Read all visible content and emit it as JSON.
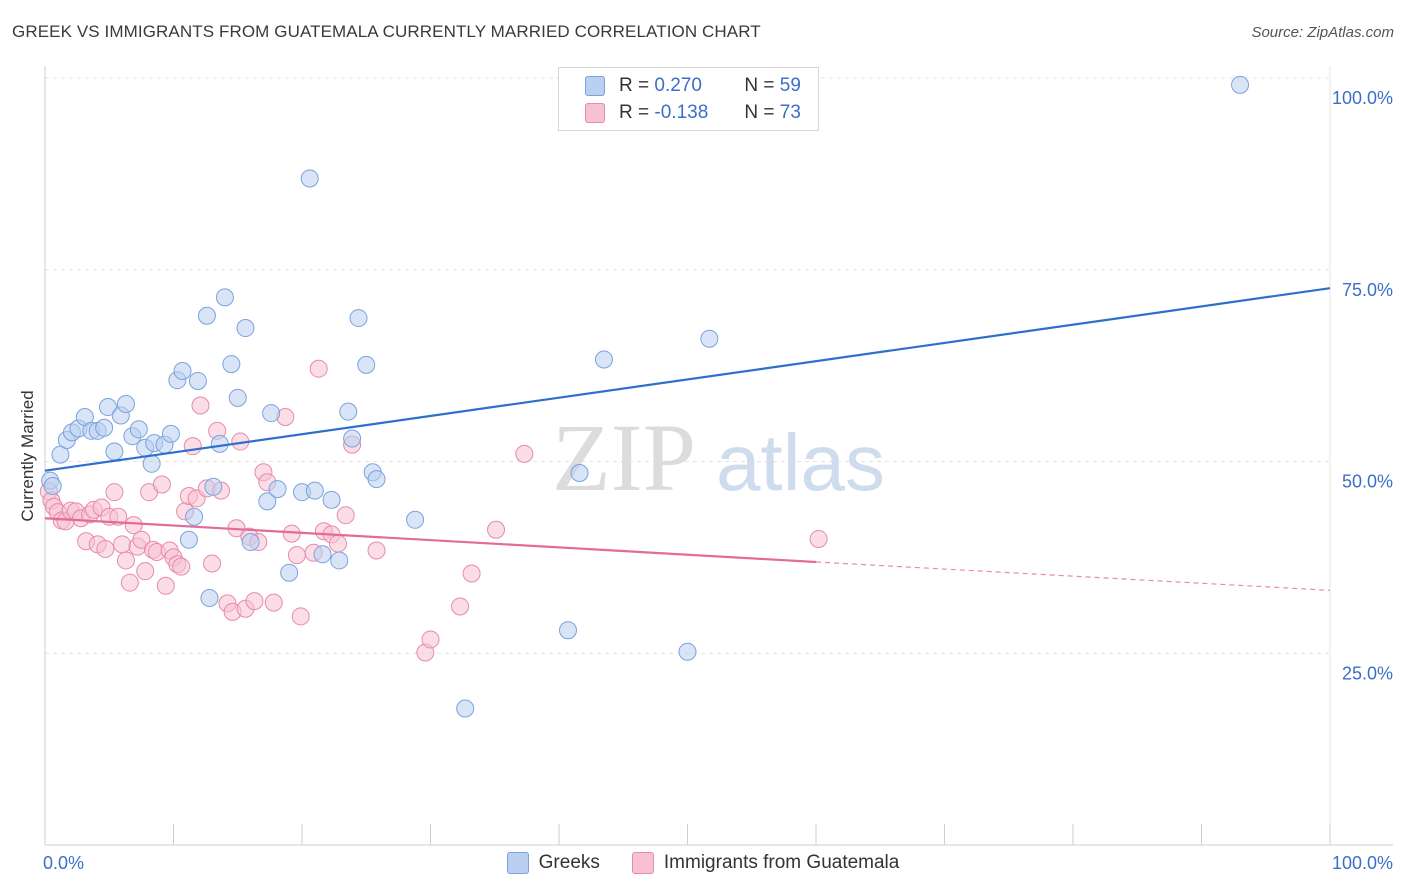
{
  "header": {
    "title": "GREEK VS IMMIGRANTS FROM GUATEMALA CURRENTLY MARRIED CORRELATION CHART",
    "source": "Source: ZipAtlas.com"
  },
  "watermark": {
    "part1": "ZIP",
    "part2": "atlas"
  },
  "legend": {
    "rows": [
      {
        "r_label": "R =",
        "r_value": "0.270",
        "n_label": "N =",
        "n_value": "59"
      },
      {
        "r_label": "R =",
        "r_value": "-0.138",
        "n_label": "N =",
        "n_value": "73"
      }
    ]
  },
  "bottom_legend": {
    "items": [
      "Greeks",
      "Immigrants from Guatemala"
    ]
  },
  "colors": {
    "greeks_fill": "#b9d0f0",
    "greeks_stroke": "#7aa3dc",
    "greeks_line": "#2e6fce",
    "guatemala_fill": "#f7c1d2",
    "guatemala_stroke": "#e88aab",
    "guatemala_line": "#e26b98",
    "tick_label": "#3b6fc7",
    "grid": "#e3e3e3"
  },
  "chart_data": {
    "type": "scatter",
    "title": "GREEK VS IMMIGRANTS FROM GUATEMALA CURRENTLY MARRIED CORRELATION CHART",
    "xlabel": "",
    "ylabel": "Currently Married",
    "xlim": [
      0,
      100
    ],
    "ylim": [
      0,
      100
    ],
    "x_ticks": [
      "0.0%",
      "100.0%"
    ],
    "y_ticks": [
      {
        "value": 25,
        "label": "25.0%"
      },
      {
        "value": 50,
        "label": "50.0%"
      },
      {
        "value": 75,
        "label": "75.0%"
      },
      {
        "value": 100,
        "label": "100.0%"
      }
    ],
    "grid": true,
    "legend_position": "top-center",
    "series": [
      {
        "name": "Greeks",
        "r": 0.27,
        "n": 59,
        "trend": {
          "x": [
            0,
            100
          ],
          "y": [
            48.8,
            72.6
          ]
        },
        "points": [
          [
            0.4,
            47.5
          ],
          [
            0.6,
            46.8
          ],
          [
            1.2,
            50.9
          ],
          [
            1.7,
            52.8
          ],
          [
            2.1,
            53.8
          ],
          [
            2.6,
            54.3
          ],
          [
            3.1,
            55.8
          ],
          [
            3.6,
            54.0
          ],
          [
            4.1,
            54.0
          ],
          [
            4.6,
            54.4
          ],
          [
            4.9,
            57.1
          ],
          [
            5.4,
            51.3
          ],
          [
            5.9,
            56.0
          ],
          [
            6.3,
            57.5
          ],
          [
            6.8,
            53.3
          ],
          [
            7.3,
            54.2
          ],
          [
            7.8,
            51.8
          ],
          [
            8.3,
            49.7
          ],
          [
            8.5,
            52.4
          ],
          [
            9.3,
            52.2
          ],
          [
            9.8,
            53.6
          ],
          [
            10.3,
            60.6
          ],
          [
            10.7,
            61.8
          ],
          [
            11.2,
            39.8
          ],
          [
            11.6,
            42.8
          ],
          [
            11.9,
            60.5
          ],
          [
            12.6,
            69.0
          ],
          [
            12.8,
            32.2
          ],
          [
            13.1,
            46.7
          ],
          [
            13.6,
            52.3
          ],
          [
            14.0,
            71.4
          ],
          [
            14.5,
            62.7
          ],
          [
            15.0,
            58.3
          ],
          [
            15.6,
            67.4
          ],
          [
            16.0,
            39.5
          ],
          [
            17.3,
            44.8
          ],
          [
            17.6,
            56.3
          ],
          [
            18.1,
            46.4
          ],
          [
            19.0,
            35.5
          ],
          [
            20.0,
            46.0
          ],
          [
            20.6,
            86.9
          ],
          [
            21.0,
            46.2
          ],
          [
            21.6,
            37.9
          ],
          [
            22.3,
            45.0
          ],
          [
            22.9,
            37.1
          ],
          [
            23.6,
            56.5
          ],
          [
            23.9,
            53.0
          ],
          [
            24.4,
            68.7
          ],
          [
            25.0,
            62.6
          ],
          [
            25.5,
            48.6
          ],
          [
            25.8,
            47.7
          ],
          [
            28.8,
            42.4
          ],
          [
            32.7,
            17.8
          ],
          [
            40.7,
            28.0
          ],
          [
            41.6,
            48.5
          ],
          [
            43.5,
            63.3
          ],
          [
            50.0,
            25.2
          ],
          [
            51.7,
            66.0
          ],
          [
            93.0,
            99.1
          ]
        ]
      },
      {
        "name": "Immigrants from Guatemala",
        "r": -0.138,
        "n": 73,
        "trend": {
          "x": [
            0,
            60
          ],
          "y": [
            42.6,
            36.9
          ]
        },
        "trend_dashed": {
          "x": [
            60,
            100
          ],
          "y": [
            36.9,
            33.2
          ]
        },
        "points": [
          [
            0.3,
            46.1
          ],
          [
            0.5,
            44.9
          ],
          [
            0.7,
            44.1
          ],
          [
            1.0,
            43.4
          ],
          [
            1.3,
            42.3
          ],
          [
            1.6,
            42.2
          ],
          [
            2.0,
            43.6
          ],
          [
            2.4,
            43.5
          ],
          [
            2.8,
            42.6
          ],
          [
            3.2,
            39.6
          ],
          [
            3.5,
            43.1
          ],
          [
            3.8,
            43.7
          ],
          [
            4.1,
            39.2
          ],
          [
            4.4,
            44.0
          ],
          [
            4.7,
            38.6
          ],
          [
            5.0,
            42.8
          ],
          [
            5.4,
            46.0
          ],
          [
            5.7,
            42.8
          ],
          [
            6.0,
            39.2
          ],
          [
            6.3,
            37.1
          ],
          [
            6.6,
            34.2
          ],
          [
            6.9,
            41.7
          ],
          [
            7.2,
            38.9
          ],
          [
            7.5,
            39.8
          ],
          [
            7.8,
            35.7
          ],
          [
            8.1,
            46.0
          ],
          [
            8.4,
            38.5
          ],
          [
            8.7,
            38.2
          ],
          [
            9.1,
            47.0
          ],
          [
            9.4,
            33.8
          ],
          [
            9.7,
            38.4
          ],
          [
            10.0,
            37.5
          ],
          [
            10.3,
            36.6
          ],
          [
            10.6,
            36.3
          ],
          [
            10.9,
            43.5
          ],
          [
            11.2,
            45.5
          ],
          [
            11.5,
            52.0
          ],
          [
            11.8,
            45.2
          ],
          [
            12.1,
            57.3
          ],
          [
            12.6,
            46.5
          ],
          [
            13.0,
            36.7
          ],
          [
            13.4,
            54.0
          ],
          [
            13.7,
            46.2
          ],
          [
            14.2,
            31.5
          ],
          [
            14.6,
            30.4
          ],
          [
            14.9,
            41.3
          ],
          [
            15.2,
            52.6
          ],
          [
            15.6,
            30.8
          ],
          [
            15.9,
            40.2
          ],
          [
            16.3,
            31.8
          ],
          [
            16.6,
            39.5
          ],
          [
            17.0,
            48.6
          ],
          [
            17.3,
            47.3
          ],
          [
            17.8,
            31.6
          ],
          [
            18.7,
            55.8
          ],
          [
            19.2,
            40.6
          ],
          [
            19.6,
            37.8
          ],
          [
            19.9,
            29.8
          ],
          [
            20.9,
            38.1
          ],
          [
            21.3,
            62.1
          ],
          [
            21.7,
            40.9
          ],
          [
            22.3,
            40.5
          ],
          [
            22.8,
            39.3
          ],
          [
            23.4,
            43.0
          ],
          [
            23.9,
            52.2
          ],
          [
            25.8,
            38.4
          ],
          [
            29.6,
            25.1
          ],
          [
            30.0,
            26.8
          ],
          [
            32.3,
            31.1
          ],
          [
            33.2,
            35.4
          ],
          [
            35.1,
            41.1
          ],
          [
            37.3,
            51.0
          ],
          [
            60.2,
            39.9
          ]
        ]
      }
    ]
  }
}
